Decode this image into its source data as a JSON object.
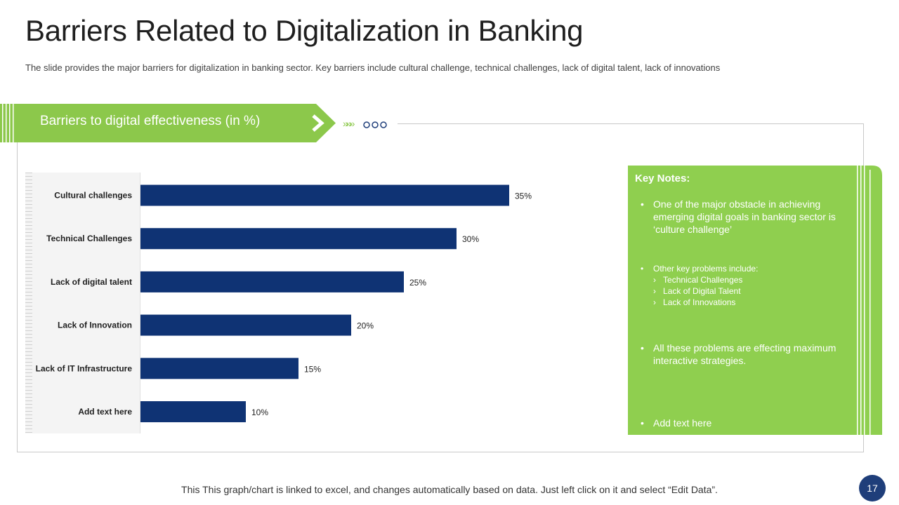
{
  "title": "Barriers Related to Digitalization in Banking",
  "subtitle": "The slide provides the major barriers for digitalization in banking sector. Key barriers include cultural challenge, technical challenges, lack of digital talent, lack of innovations",
  "banner": {
    "label": "Barriers to digital effectiveness (in %)",
    "chevrons": "»»»"
  },
  "chart_data": {
    "type": "bar",
    "orientation": "horizontal",
    "title": "Barriers to digital effectiveness (in %)",
    "categories": [
      "Cultural challenges",
      "Technical Challenges",
      "Lack of digital talent",
      "Lack of Innovation",
      "Lack of IT Infrastructure",
      "Add text here"
    ],
    "values": [
      35,
      30,
      25,
      20,
      15,
      10
    ],
    "labels": [
      "35%",
      "30%",
      "25%",
      "20%",
      "15%",
      "10%"
    ],
    "xlim": [
      0,
      40
    ],
    "bar_color": "#0f3374",
    "grid": false
  },
  "notes": {
    "title": "Key Notes:",
    "bullet": "•",
    "sub_marker": "›",
    "items": [
      "One of the major obstacle in achieving emerging digital goals in banking sector is ‘culture challenge’",
      "Other key problems include:",
      "All these problems are effecting maximum interactive strategies.",
      "Add text here"
    ],
    "subitems": [
      "Technical Challenges",
      "Lack of Digital Talent",
      "Lack of Innovations"
    ]
  },
  "footer": "This This graph/chart is linked to excel, and changes automatically based on data. Just left click on it and select “Edit Data”.",
  "page_number": "17",
  "colors": {
    "accent_green": "#8cc84b",
    "navy": "#0f3374",
    "badge": "#1f3e7a"
  }
}
